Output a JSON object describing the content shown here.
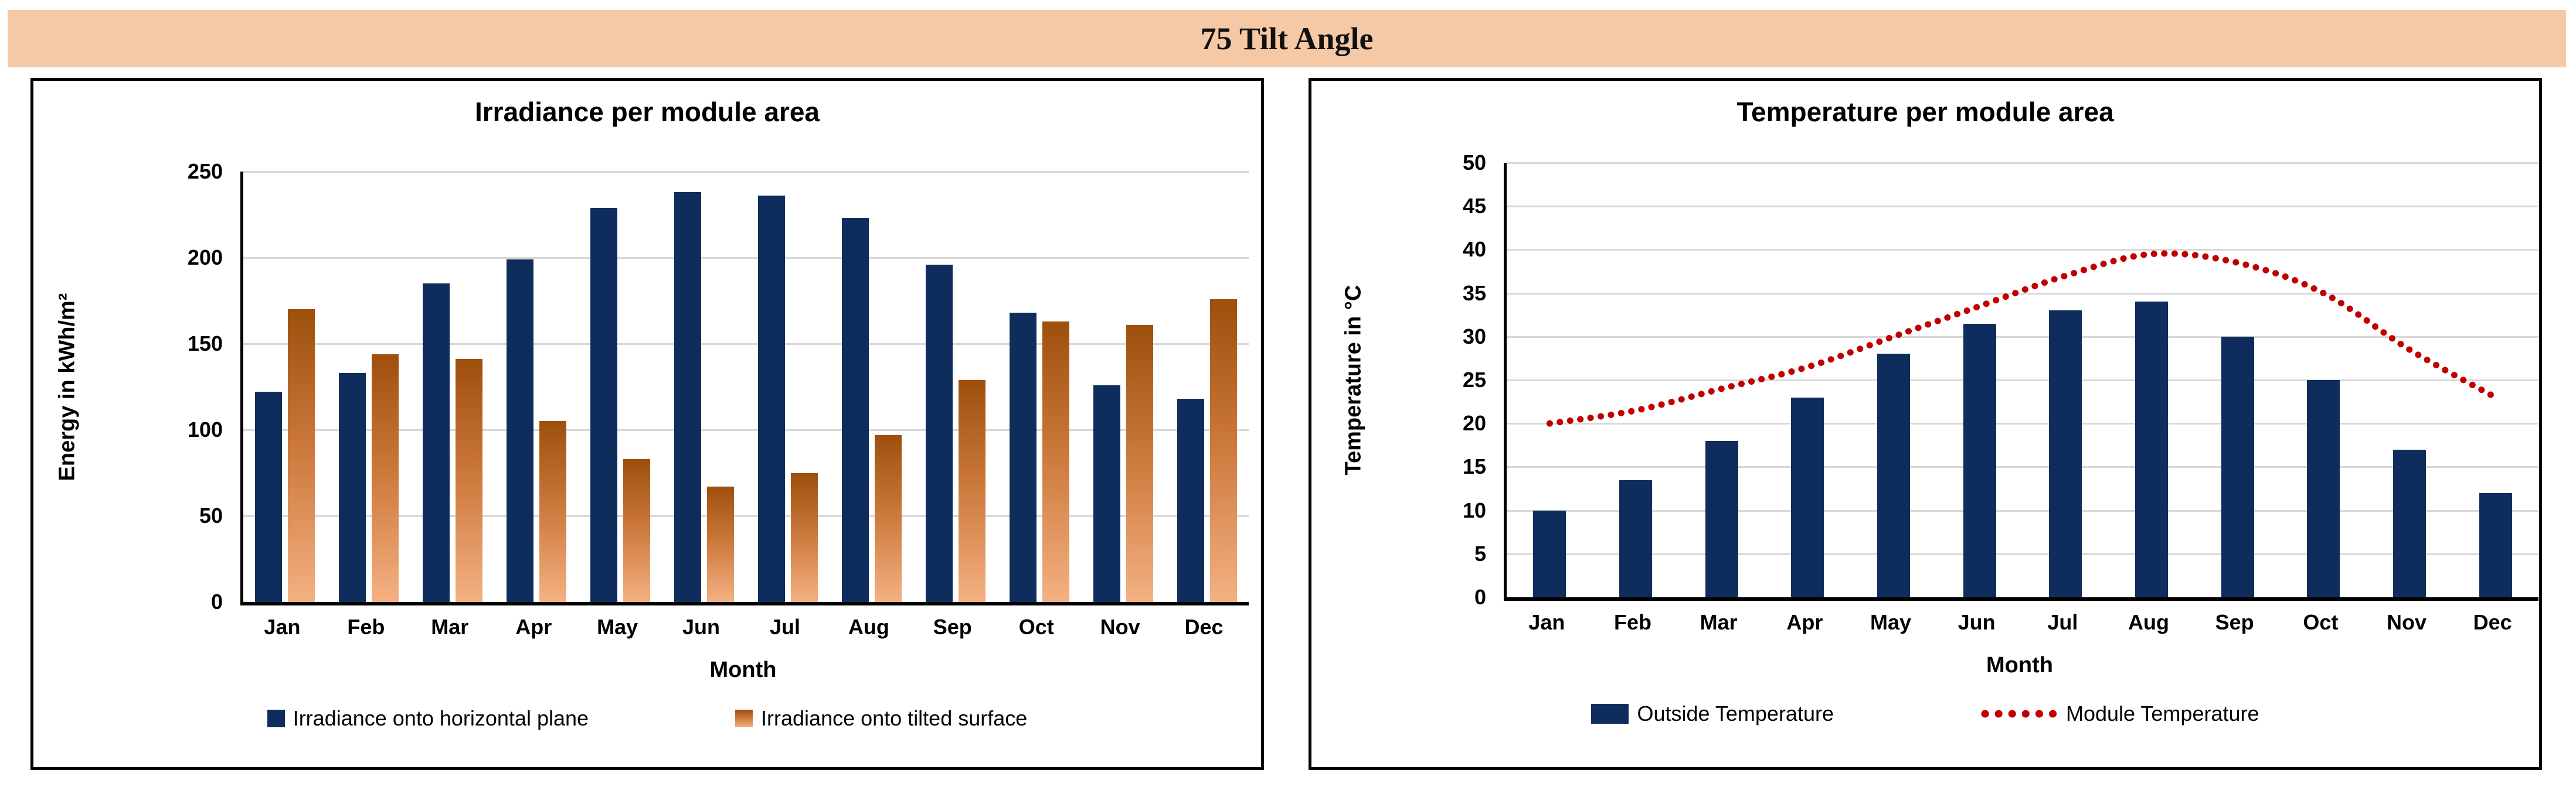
{
  "header": {
    "title": "75 Tilt Angle",
    "band_color": "#F6C9A6"
  },
  "palette": {
    "navy": "#0F2D5C",
    "orange_gradient": [
      "#9E4F0C",
      "#CE7B3E",
      "#F4B183"
    ],
    "red": "#C00000",
    "gridline": "#D8D8D8"
  },
  "chart_data": [
    {
      "type": "bar",
      "title": "Irradiance per module area",
      "xlabel": "Month",
      "ylabel": "Energy in kWh/m²",
      "ylim": [
        0,
        250
      ],
      "ytick_step": 50,
      "grid": true,
      "legend_position": "bottom",
      "categories": [
        "Jan",
        "Feb",
        "Mar",
        "Apr",
        "May",
        "Jun",
        "Jul",
        "Aug",
        "Sep",
        "Oct",
        "Nov",
        "Dec"
      ],
      "series": [
        {
          "name": "Irradiance onto horizontal plane",
          "type": "bar",
          "color": "#0F2D5C",
          "values": [
            122,
            133,
            185,
            199,
            229,
            238,
            236,
            223,
            196,
            168,
            126,
            118
          ]
        },
        {
          "name": "Irradiance onto tilted surface",
          "type": "bar",
          "color_gradient": [
            "#9E4F0C",
            "#CE7B3E",
            "#F4B183"
          ],
          "values": [
            170,
            144,
            141,
            105,
            83,
            67,
            75,
            97,
            129,
            163,
            161,
            176
          ]
        }
      ]
    },
    {
      "type": "bar",
      "title": "Temperature per module area",
      "xlabel": "Month",
      "ylabel": "Temperature in °C",
      "ylim": [
        0,
        50
      ],
      "ytick_step": 5,
      "grid": true,
      "legend_position": "bottom",
      "categories": [
        "Jan",
        "Feb",
        "Mar",
        "Apr",
        "May",
        "Jun",
        "Jul",
        "Aug",
        "Sep",
        "Oct",
        "Nov",
        "Dec"
      ],
      "series": [
        {
          "name": "Outside Temperature",
          "type": "bar",
          "color": "#0F2D5C",
          "values": [
            10,
            13.5,
            18,
            23,
            28,
            31.5,
            33,
            34,
            30,
            25,
            17,
            12
          ]
        },
        {
          "name": "Module Temperature",
          "type": "dotted-line",
          "color": "#C00000",
          "values": [
            20,
            21.5,
            24,
            26.5,
            30,
            33.5,
            37,
            39.5,
            38.5,
            35,
            28.5,
            23
          ]
        }
      ]
    }
  ]
}
